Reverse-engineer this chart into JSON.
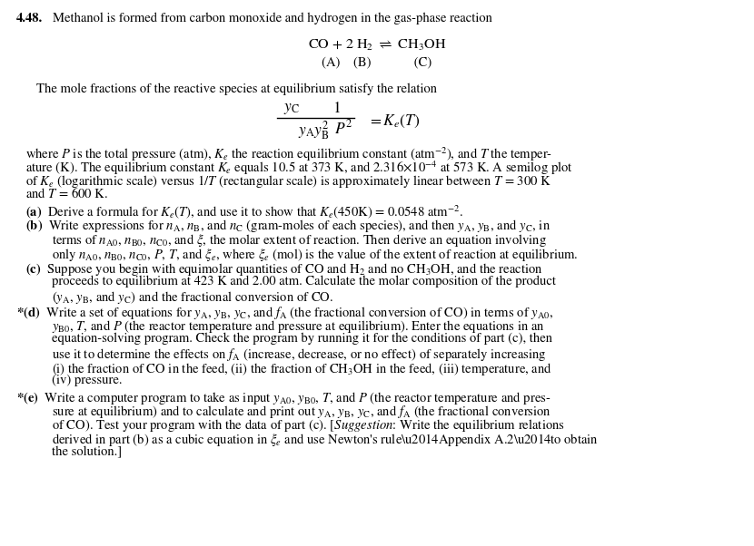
{
  "bg_color": "#ffffff",
  "figsize": [
    8.3,
    6.02
  ],
  "dpi": 100,
  "font_size": 10.0,
  "small_font": 9.5,
  "title_line": "4.48.",
  "title_rest": "Methanol is formed from carbon monoxide and hydrogen in the gas-phase reaction",
  "chem_eq": "CO + 2 H$_2$ $\\rightleftharpoons$ CH$_3$OH",
  "labels_abc": "(A)    (B)             (C)",
  "mole_frac_line": "The mole fractions of the reactive species at equilibrium satisfy the relation",
  "where_lines": [
    "where $P$ is the total pressure (atm), $K_e$ the reaction equilibrium constant (atm$^{-2}$), and $T$ the temper-",
    "ature (K). The equilibrium constant $K_e$ equals 10.5 at 373 K, and 2.316$\\times$10$^{-4}$ at 573 K. A semilog plot",
    "of $K_e$ (logarithmic scale) versus 1/$T$ (rectangular scale) is approximately linear between $T$ = 300 K",
    "and $T$ = 600 K."
  ],
  "part_a": "(a)  Derive a formula for $K_e(T)$, and use it to show that $K_e$(450K) = 0.0548 atm$^{-2}$.",
  "part_b_lines": [
    "(b)  Write expressions for $n_{\\rm A}$, $n_{\\rm B}$, and $n_{\\rm C}$ (gram-moles of each species), and then $y_{\\rm A}$, $y_{\\rm B}$, and $y_{\\rm C}$, in",
    "terms of $n_{\\rm A0}$, $n_{\\rm B0}$, $n_{\\rm C0}$, and $\\xi$, the molar extent of reaction. Then derive an equation involving",
    "only $n_{\\rm A0}$, $n_{\\rm B0}$, $n_{\\rm C0}$, $P$, $T$, and $\\xi_e$, where $\\xi_e$ (mol) is the value of the extent of reaction at equilibrium."
  ],
  "part_c_lines": [
    "(c)  Suppose you begin with equimolar quantities of CO and H$_2$ and no CH$_3$OH, and the reaction",
    "proceeds to equilibrium at 423 K and 2.00 atm. Calculate the molar composition of the product",
    "($y_{\\rm A}$, $y_{\\rm B}$, and $y_{\\rm C}$) and the fractional conversion of CO."
  ],
  "part_d_lines": [
    "*(d)  Write a set of equations for $y_{\\rm A}$, $y_{\\rm B}$, $y_{\\rm C}$, and $f_{\\rm A}$ (the fractional conversion of CO) in terms of $y_{\\rm A0}$,",
    "$y_{\\rm B0}$, $T$, and $P$ (the reactor temperature and pressure at equilibrium). Enter the equations in an",
    "equation-solving program. Check the program by running it for the conditions of part (c), then",
    "use it to determine the effects on $f_{\\rm A}$ (increase, decrease, or no effect) of separately increasing",
    "(i) the fraction of CO in the feed, (ii) the fraction of CH$_3$OH in the feed, (iii) temperature, and",
    "(iv) pressure."
  ],
  "part_e_lines": [
    "*(e)  Write a computer program to take as input $y_{\\rm A0}$, $y_{\\rm B0}$, $T$, and $P$ (the reactor temperature and pres-",
    "sure at equilibrium) and to calculate and print out $y_{\\rm A}$, $y_{\\rm B}$, $y_{\\rm C}$, and $f_{\\rm A}$ (the fractional conversion",
    "of CO). Test your program with the data of part (c). [$\\it{Suggestion}$: Write the equilibrium relations",
    "derived in part (b) as a cubic equation in $\\xi_e$ and use Newton's rule—Appendix A.2—to obtain",
    "the solution.]"
  ]
}
